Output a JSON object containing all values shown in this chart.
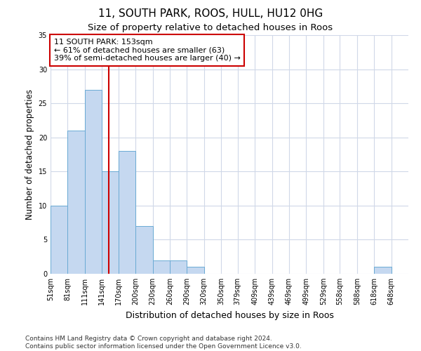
{
  "title1": "11, SOUTH PARK, ROOS, HULL, HU12 0HG",
  "title2": "Size of property relative to detached houses in Roos",
  "xlabel": "Distribution of detached houses by size in Roos",
  "ylabel": "Number of detached properties",
  "categories": [
    "51sqm",
    "81sqm",
    "111sqm",
    "141sqm",
    "170sqm",
    "200sqm",
    "230sqm",
    "260sqm",
    "290sqm",
    "320sqm",
    "350sqm",
    "379sqm",
    "409sqm",
    "439sqm",
    "469sqm",
    "499sqm",
    "529sqm",
    "558sqm",
    "588sqm",
    "618sqm",
    "648sqm"
  ],
  "values": [
    10,
    21,
    27,
    15,
    18,
    7,
    2,
    2,
    1,
    0,
    0,
    0,
    0,
    0,
    0,
    0,
    0,
    0,
    0,
    1,
    0
  ],
  "bar_color": "#c5d8f0",
  "bar_edge_color": "#6aaad4",
  "vline_x": 153,
  "vline_color": "#cc0000",
  "bin_edges": [
    51,
    81,
    111,
    141,
    170,
    200,
    230,
    260,
    290,
    320,
    350,
    379,
    409,
    439,
    469,
    499,
    529,
    558,
    588,
    618,
    648,
    678
  ],
  "annotation_text": "11 SOUTH PARK: 153sqm\n← 61% of detached houses are smaller (63)\n39% of semi-detached houses are larger (40) →",
  "annotation_box_color": "#ffffff",
  "annotation_box_edge_color": "#cc0000",
  "ylim": [
    0,
    35
  ],
  "yticks": [
    0,
    5,
    10,
    15,
    20,
    25,
    30,
    35
  ],
  "footnote": "Contains HM Land Registry data © Crown copyright and database right 2024.\nContains public sector information licensed under the Open Government Licence v3.0.",
  "bg_color": "#ffffff",
  "grid_color": "#d0d8e8",
  "title1_fontsize": 11,
  "title2_fontsize": 9.5,
  "xlabel_fontsize": 9,
  "ylabel_fontsize": 8.5,
  "annotation_fontsize": 8,
  "footnote_fontsize": 6.5,
  "tick_fontsize": 7
}
